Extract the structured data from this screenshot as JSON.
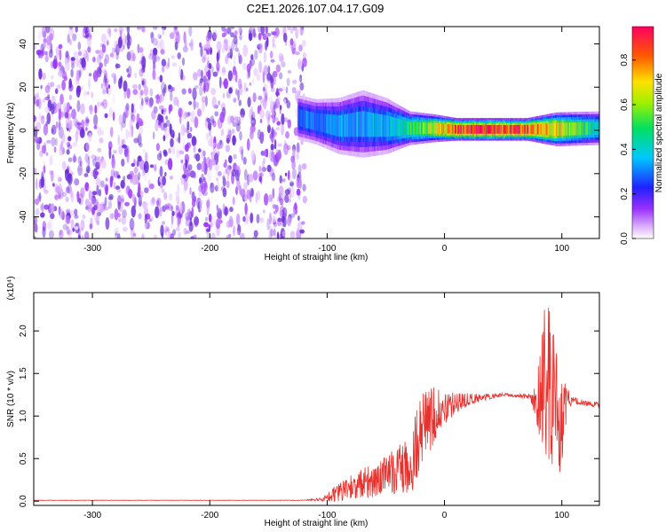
{
  "title": "C2E1.2026.107.04.17.G09",
  "chart_data": [
    {
      "type": "heatmap",
      "xlabel": "Height of straight line (km)",
      "ylabel": "Frequency (Hz)",
      "xlim": [
        -350,
        132
      ],
      "ylim": [
        -50,
        48
      ],
      "xticks": [
        -300,
        -200,
        -100,
        0,
        100
      ],
      "yticks": [
        -40,
        -20,
        0,
        20,
        40
      ],
      "colorbar": {
        "label": "Normalized spectral amplitude",
        "range": [
          0.0,
          0.95
        ],
        "ticks": [
          "0.0",
          "0.2",
          "0.4",
          "0.6",
          "0.8"
        ],
        "tick_values": [
          0.0,
          0.2,
          0.4,
          0.6,
          0.8
        ],
        "colormap": "rainbow"
      },
      "noise_region": {
        "x": [
          -350,
          -125
        ],
        "amplitude": [
          0.05,
          0.35
        ],
        "color": "#6a2fd8"
      },
      "signal_band": [
        {
          "x": -125,
          "center": 6,
          "halfwidth": 4,
          "amplitude": 0.28
        },
        {
          "x": -110,
          "center": 4,
          "halfwidth": 4,
          "amplitude": 0.3
        },
        {
          "x": -90,
          "center": 2,
          "halfwidth": 5,
          "amplitude": 0.32
        },
        {
          "x": -70,
          "center": 3,
          "halfwidth": 6,
          "amplitude": 0.33
        },
        {
          "x": -50,
          "center": 2,
          "halfwidth": 5,
          "amplitude": 0.35
        },
        {
          "x": -30,
          "center": 1,
          "halfwidth": 3,
          "amplitude": 0.5
        },
        {
          "x": -10,
          "center": 1,
          "halfwidth": 2.5,
          "amplitude": 0.65
        },
        {
          "x": 10,
          "center": 0.5,
          "halfwidth": 2,
          "amplitude": 0.85
        },
        {
          "x": 40,
          "center": 0.5,
          "halfwidth": 2,
          "amplitude": 0.9
        },
        {
          "x": 70,
          "center": 0.5,
          "halfwidth": 2,
          "amplitude": 0.85
        },
        {
          "x": 95,
          "center": 0.5,
          "halfwidth": 3,
          "amplitude": 0.7
        },
        {
          "x": 132,
          "center": 1,
          "halfwidth": 3,
          "amplitude": 0.4
        }
      ],
      "grid": false
    },
    {
      "type": "line",
      "xlabel": "Height of straight line (km)",
      "ylabel": "SNR (10 * v/v)",
      "y_multiplier": "(x10⁴)",
      "xlim": [
        -350,
        132
      ],
      "ylim": [
        -0.05,
        2.45
      ],
      "xticks": [
        -300,
        -200,
        -100,
        0,
        100
      ],
      "yticks": [
        "0.0",
        "0.5",
        "1.0",
        "1.5",
        "2.0"
      ],
      "ytick_values": [
        0.0,
        0.5,
        1.0,
        1.5,
        2.0
      ],
      "color": "#e8302c",
      "grid": false,
      "series": [
        {
          "x": [
            -350,
            -300,
            -250,
            -200,
            -150,
            -120,
            -105,
            -100,
            -90,
            -80,
            -70,
            -60,
            -50,
            -40,
            -30,
            -25,
            -20,
            -10,
            0,
            10,
            20,
            30,
            40,
            50,
            60,
            70,
            75,
            80,
            85,
            90,
            95,
            100,
            105,
            110,
            120,
            132
          ],
          "y": [
            0.01,
            0.01,
            0.01,
            0.01,
            0.01,
            0.01,
            0.02,
            0.05,
            0.1,
            0.15,
            0.2,
            0.25,
            0.3,
            0.35,
            0.45,
            0.6,
            0.8,
            1.0,
            1.1,
            1.15,
            1.2,
            1.22,
            1.23,
            1.25,
            1.24,
            1.23,
            1.2,
            1.25,
            1.35,
            1.3,
            1.1,
            0.9,
            1.2,
            1.18,
            1.15,
            1.13
          ],
          "spread": [
            0.002,
            0.002,
            0.002,
            0.002,
            0.002,
            0.003,
            0.02,
            0.06,
            0.12,
            0.15,
            0.18,
            0.2,
            0.25,
            0.3,
            0.35,
            0.45,
            0.45,
            0.35,
            0.2,
            0.12,
            0.08,
            0.05,
            0.03,
            0.02,
            0.02,
            0.03,
            0.08,
            0.45,
            0.9,
            1.0,
            0.9,
            0.6,
            0.12,
            0.05,
            0.03,
            0.03
          ]
        }
      ]
    }
  ]
}
